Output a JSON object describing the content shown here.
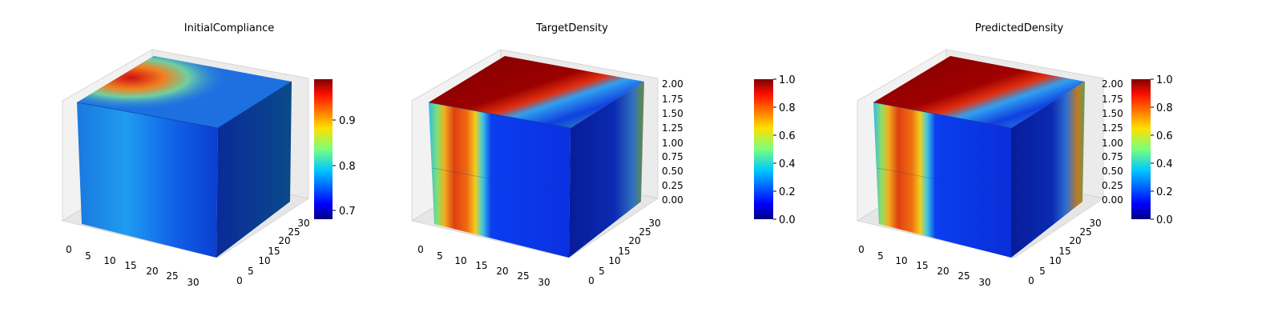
{
  "chart_data": [
    {
      "type": "heatmap",
      "title": "InitialCompliance",
      "x_ticks": [
        "0",
        "5",
        "10",
        "15",
        "20",
        "25",
        "30"
      ],
      "y_ticks": [
        "0",
        "5",
        "10",
        "15",
        "20",
        "25",
        "30"
      ],
      "z_ticks": [],
      "colorbar": {
        "colormap": "jet",
        "ticks": [
          "0.7",
          "0.8",
          "0.9"
        ],
        "range": [
          0.68,
          1.0
        ]
      }
    },
    {
      "type": "heatmap",
      "title": "TargetDensity",
      "x_ticks": [
        "0",
        "5",
        "10",
        "15",
        "20",
        "25",
        "30"
      ],
      "y_ticks": [
        "0",
        "5",
        "10",
        "15",
        "20",
        "25",
        "30"
      ],
      "z_ticks": [
        "0.00",
        "0.25",
        "0.50",
        "0.75",
        "1.00",
        "1.25",
        "1.50",
        "1.75",
        "2.00"
      ],
      "colorbar": {
        "colormap": "jet",
        "ticks": [
          "0.0",
          "0.2",
          "0.4",
          "0.6",
          "0.8",
          "1.0"
        ],
        "range": [
          0.0,
          1.0
        ]
      }
    },
    {
      "type": "heatmap",
      "title": "PredictedDensity",
      "x_ticks": [
        "0",
        "5",
        "10",
        "15",
        "20",
        "25",
        "30"
      ],
      "y_ticks": [
        "0",
        "5",
        "10",
        "15",
        "20",
        "25",
        "30"
      ],
      "z_ticks": [
        "0.00",
        "0.25",
        "0.50",
        "0.75",
        "1.00",
        "1.25",
        "1.50",
        "1.75",
        "2.00"
      ],
      "colorbar": {
        "colormap": "jet",
        "ticks": [
          "0.0",
          "0.2",
          "0.4",
          "0.6",
          "0.8",
          "1.0"
        ],
        "range": [
          0.0,
          1.0
        ]
      }
    }
  ]
}
